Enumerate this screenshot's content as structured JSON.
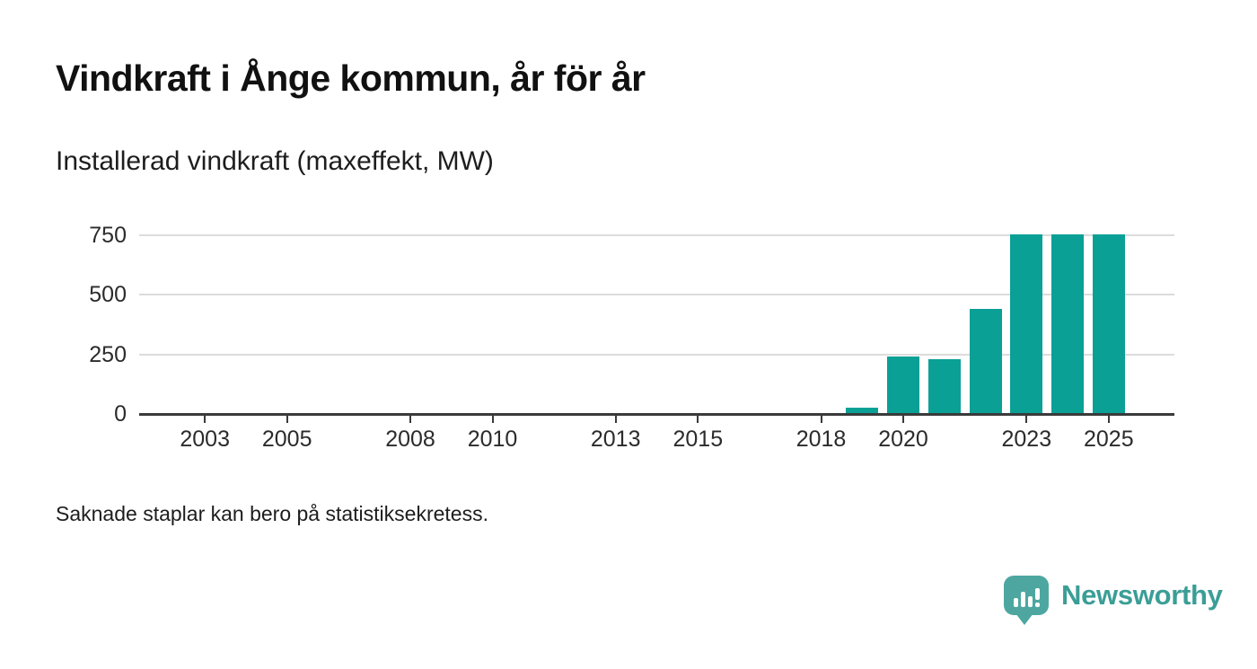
{
  "header": {
    "title": "Vindkraft i Ånge kommun, år för år",
    "subtitle": "Installerad vindkraft (maxeffekt, MW)"
  },
  "footer": {
    "note": "Saknade staplar kan bero på statistiksekretess.",
    "brand": "Newsworthy"
  },
  "icons": {
    "logo": "bar-chart-speech-bubble-icon"
  },
  "colors": {
    "bar": "#0aa096",
    "gridline": "#dcdcdc",
    "axis": "#3a3a3a",
    "logo_background": "#4da7a0",
    "brand_text": "#3b9e96"
  },
  "chart_data": {
    "type": "bar",
    "title": "Vindkraft i Ånge kommun, år för år",
    "ylabel": "Installerad vindkraft (maxeffekt, MW)",
    "annotation": "Saknade staplar kan bero på statistiksekretess.",
    "x": [
      2019,
      2020,
      2021,
      2022,
      2023,
      2024,
      2025
    ],
    "values": [
      25,
      240,
      230,
      440,
      755,
      755,
      755
    ],
    "x_ticks": [
      2003,
      2005,
      2008,
      2010,
      2013,
      2015,
      2018,
      2020,
      2023,
      2025
    ],
    "y_ticks": [
      0,
      250,
      500,
      750
    ],
    "xlim": [
      2001.4,
      2026.6
    ],
    "ylim": [
      0,
      760
    ],
    "grid": "horizontal",
    "legend": "none",
    "missing_years_note": "no bars shown before 2019"
  }
}
